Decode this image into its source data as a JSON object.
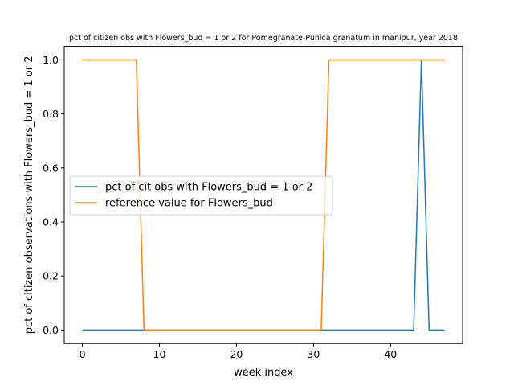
{
  "chart_data": {
    "type": "line",
    "title": "pct of citizen obs with Flowers_bud = 1 or 2 for Pomegranate-Punica granatum in manipur, year 2018",
    "xlabel": "week index",
    "ylabel": "pct of citizen observations with Flowers_bud = 1 or 2",
    "xlim": [
      -2.35,
      49.35
    ],
    "ylim": [
      -0.05,
      1.05
    ],
    "xticks": [
      0,
      10,
      20,
      30,
      40
    ],
    "yticks": [
      0.0,
      0.2,
      0.4,
      0.6,
      0.8,
      1.0
    ],
    "xtick_labels": [
      "0",
      "10",
      "20",
      "30",
      "40"
    ],
    "ytick_labels": [
      "0.0",
      "0.2",
      "0.4",
      "0.6",
      "0.8",
      "1.0"
    ],
    "grid": false,
    "legend_position": "center-left",
    "series": [
      {
        "name": "pct of cit obs with Flowers_bud = 1 or 2",
        "color": "#1f77b4",
        "x": [
          0,
          43,
          44,
          45,
          47
        ],
        "y": [
          0,
          0,
          1,
          0,
          0
        ]
      },
      {
        "name": "reference value for Flowers_bud",
        "color": "#ff7f0e",
        "x": [
          0,
          7,
          8,
          31,
          32,
          47
        ],
        "y": [
          1,
          1,
          0,
          0,
          1,
          1
        ]
      }
    ]
  }
}
